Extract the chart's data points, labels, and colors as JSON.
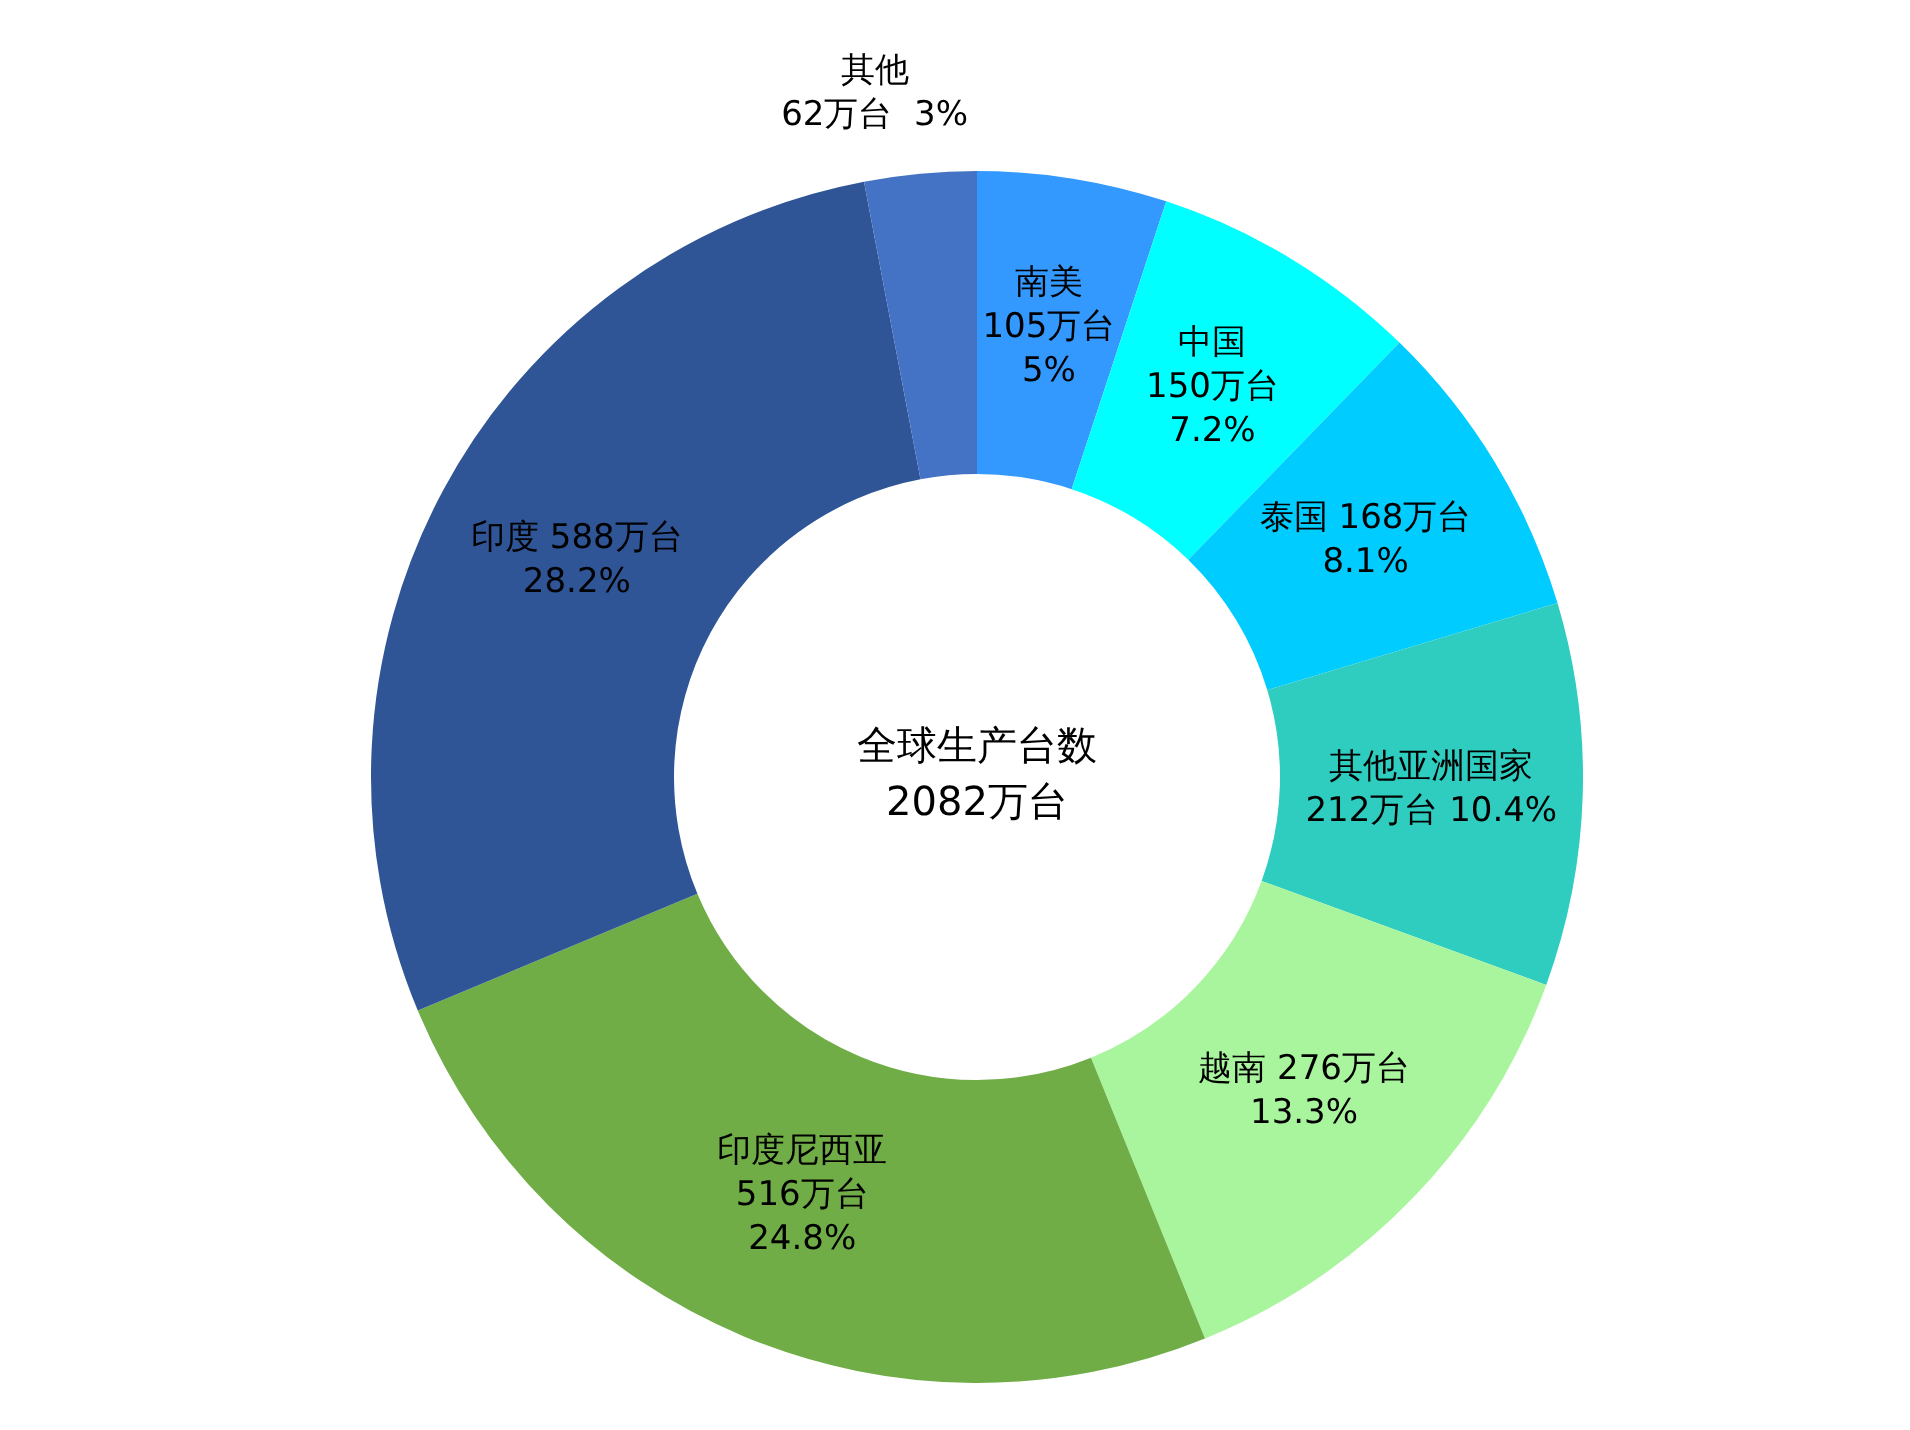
{
  "chart_data": {
    "type": "donut",
    "categories": [
      "南美",
      "中国",
      "泰国",
      "其他亚洲国家",
      "越南",
      "印度尼西亚",
      "印度",
      "其他"
    ],
    "values": [
      105,
      150,
      168,
      212,
      276,
      516,
      588,
      62
    ],
    "value_labels": [
      "105万台\n5%",
      "150万台\n7.2%",
      "168万台\n8.1%",
      "212万台 10.4%",
      "276万台\n13.3%",
      "516万台\n24.8%",
      "588万台\n28.2%",
      "62万台  3%"
    ],
    "colors": [
      "#3399ff",
      "#00ffff",
      "#00ccff",
      "#2ecdc0",
      "#a9f59d",
      "#70ad47",
      "#2f5597",
      "#4472c4"
    ],
    "annotations": [
      "全球生产台数\n2082万台"
    ],
    "legend": false
  }
}
